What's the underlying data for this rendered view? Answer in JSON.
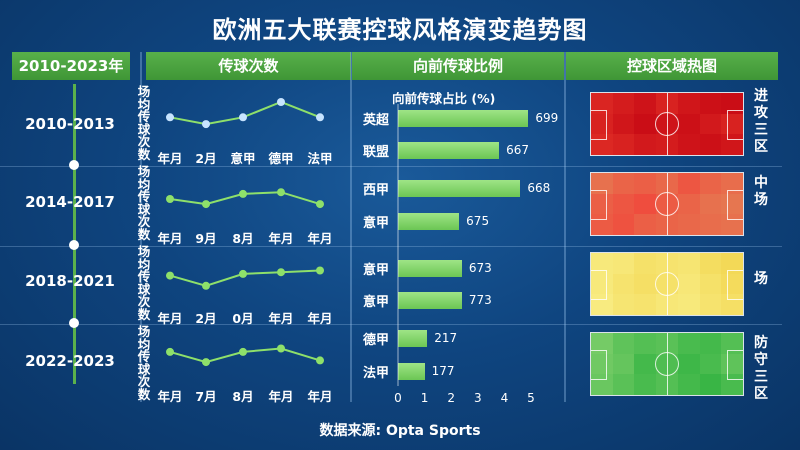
{
  "title": "欧洲五大联赛控球风格演变趋势图",
  "headers": {
    "period": "2010-2023年",
    "passes": "传球次数",
    "forward": "向前传球比例",
    "heatmap": "控球区域热图"
  },
  "y_label": "场均传球次数",
  "bar_axis_title": "向前传球占比 (%)",
  "source": "数据来源: Opta Sports",
  "colors": {
    "line": "#8ee06a",
    "point": "#c7e4ff",
    "bar": "#7ed063",
    "header": "#4ea843"
  },
  "chart_data": [
    {
      "type": "line",
      "panel": "passes",
      "period": "2010-2013",
      "categories": [
        "年月",
        "2月",
        "意甲",
        "德甲",
        "法甲"
      ],
      "values": [
        0.55,
        0.35,
        0.55,
        1.0,
        0.55
      ],
      "point_style": "light-blue"
    },
    {
      "type": "line",
      "panel": "passes",
      "period": "2014-2017",
      "categories": [
        "年月",
        "9月",
        "8月",
        "年月",
        "年月"
      ],
      "values": [
        0.5,
        0.35,
        0.65,
        0.7,
        0.35
      ],
      "point_style": "green"
    },
    {
      "type": "line",
      "panel": "passes",
      "period": "2018-2021",
      "categories": [
        "年月",
        "2月",
        "0月",
        "年月",
        "年月"
      ],
      "values": [
        0.6,
        0.3,
        0.65,
        0.7,
        0.75
      ],
      "point_style": "green"
    },
    {
      "type": "line",
      "panel": "passes",
      "period": "2022-2023",
      "categories": [
        "年月",
        "7月",
        "8月",
        "年月",
        "年月"
      ],
      "values": [
        0.65,
        0.35,
        0.65,
        0.75,
        0.4
      ],
      "point_style": "green"
    },
    {
      "type": "bar",
      "orientation": "horizontal",
      "panel": "forward",
      "xlim": [
        0,
        5
      ],
      "xticks": [
        "0",
        "1",
        "2",
        "3",
        "4",
        "5"
      ],
      "categories": [
        "英超",
        "联盟",
        "西甲",
        "意甲",
        "意甲",
        "意甲",
        "德甲",
        "法甲"
      ],
      "values": [
        4.9,
        3.8,
        4.6,
        2.3,
        2.4,
        2.4,
        1.1,
        1.0
      ],
      "labels": [
        "699",
        "667",
        "668",
        "675",
        "673",
        "773",
        "217",
        "177"
      ]
    },
    {
      "type": "heatmap",
      "panel": "heatmap",
      "zones": [
        {
          "period": "2010-2013",
          "label": "进攻三区",
          "palette": "red",
          "cells": [
            [
              0.55,
              0.7,
              0.85,
              0.6,
              0.8,
              0.9,
              0.95
            ],
            [
              0.6,
              0.8,
              0.95,
              0.85,
              0.9,
              0.75,
              0.6
            ],
            [
              0.5,
              0.6,
              0.75,
              0.7,
              0.85,
              0.9,
              0.8
            ]
          ]
        },
        {
          "period": "2014-2017",
          "label": "中场",
          "palette": "redorange",
          "cells": [
            [
              0.3,
              0.45,
              0.5,
              0.4,
              0.6,
              0.45,
              0.35
            ],
            [
              0.5,
              0.6,
              0.7,
              0.55,
              0.45,
              0.3,
              0.25
            ],
            [
              0.55,
              0.65,
              0.5,
              0.45,
              0.4,
              0.35,
              0.3
            ]
          ]
        },
        {
          "period": "2018-2021",
          "label": "场",
          "palette": "yellow",
          "cells": [
            [
              0.3,
              0.35,
              0.5,
              0.45,
              0.4,
              0.6,
              0.7
            ],
            [
              0.3,
              0.45,
              0.55,
              0.5,
              0.35,
              0.5,
              0.65
            ],
            [
              0.25,
              0.4,
              0.45,
              0.35,
              0.3,
              0.45,
              0.55
            ]
          ]
        },
        {
          "period": "2022-2023",
          "label": "防守三区",
          "palette": "green",
          "cells": [
            [
              0.3,
              0.5,
              0.6,
              0.55,
              0.7,
              0.75,
              0.6
            ],
            [
              0.35,
              0.45,
              0.75,
              0.65,
              0.8,
              0.7,
              0.5
            ],
            [
              0.4,
              0.55,
              0.7,
              0.6,
              0.75,
              0.85,
              0.7
            ]
          ]
        }
      ]
    }
  ]
}
